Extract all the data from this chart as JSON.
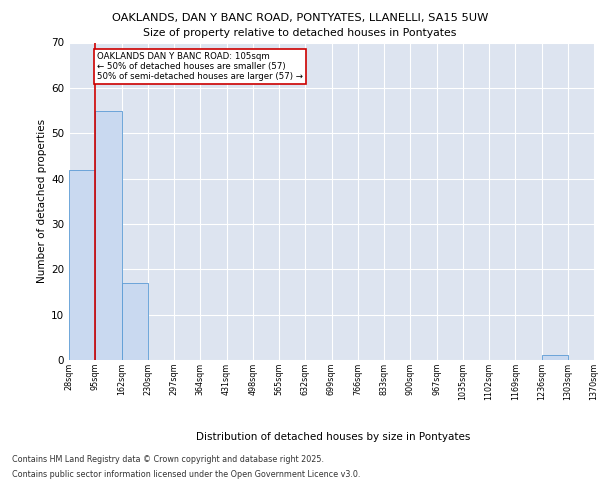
{
  "title1": "OAKLANDS, DAN Y BANC ROAD, PONTYATES, LLANELLI, SA15 5UW",
  "title2": "Size of property relative to detached houses in Pontyates",
  "xlabel": "Distribution of detached houses by size in Pontyates",
  "ylabel": "Number of detached properties",
  "bar_values": [
    42,
    55,
    17,
    0,
    0,
    0,
    0,
    0,
    0,
    0,
    0,
    0,
    0,
    0,
    0,
    0,
    0,
    0,
    1,
    0
  ],
  "categories": [
    "28sqm",
    "95sqm",
    "162sqm",
    "230sqm",
    "297sqm",
    "364sqm",
    "431sqm",
    "498sqm",
    "565sqm",
    "632sqm",
    "699sqm",
    "766sqm",
    "833sqm",
    "900sqm",
    "967sqm",
    "1035sqm",
    "1102sqm",
    "1169sqm",
    "1236sqm",
    "1303sqm",
    "1370sqm"
  ],
  "bar_color": "#c9d9f0",
  "bar_edge_color": "#5b9bd5",
  "vline_x": 1,
  "vline_color": "#cc0000",
  "annotation_text": "OAKLANDS DAN Y BANC ROAD: 105sqm\n← 50% of detached houses are smaller (57)\n50% of semi-detached houses are larger (57) →",
  "annotation_box_color": "white",
  "annotation_box_edge": "#cc0000",
  "ylim": [
    0,
    70
  ],
  "yticks": [
    0,
    10,
    20,
    30,
    40,
    50,
    60,
    70
  ],
  "background_color": "#dde4f0",
  "footer1": "Contains HM Land Registry data © Crown copyright and database right 2025.",
  "footer2": "Contains public sector information licensed under the Open Government Licence v3.0."
}
